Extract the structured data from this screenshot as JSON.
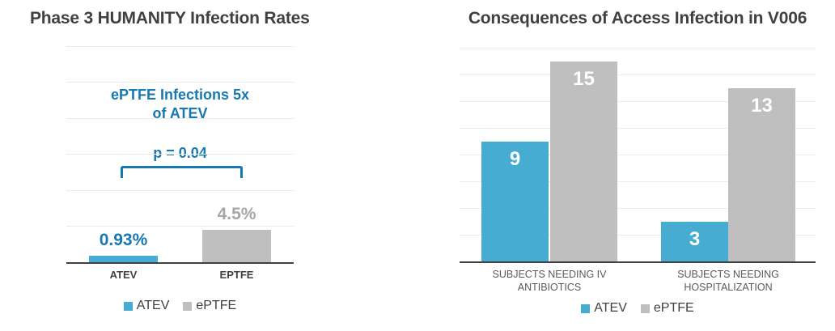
{
  "colors": {
    "atev": "#47ACD2",
    "eptfe": "#BFBFBF",
    "accent_blue": "#1778B2",
    "title_text": "#404040",
    "gray_label": "#A6A6A6",
    "axis": "#404040",
    "gridline": "#EBEBEB",
    "category_dark": "#404040",
    "category_gray": "#595959",
    "legend_text": "#3F3F3F",
    "bar_label_white": "#FFFFFF"
  },
  "chart_data": [
    {
      "type": "bar",
      "title": "Phase 3 HUMANITY Infection Rates",
      "categories": [
        "ATEV",
        "EPTFE"
      ],
      "values": [
        0.93,
        4.5
      ],
      "value_labels": [
        "0.93%",
        "4.5%"
      ],
      "value_label_colors": [
        "accent_blue",
        "gray_label"
      ],
      "bar_colors": [
        "atev",
        "eptfe"
      ],
      "ylim": [
        0,
        30
      ],
      "grid_step": 5,
      "grid": true,
      "legend_position": "bottom",
      "legend": [
        {
          "label": "ATEV",
          "color": "atev"
        },
        {
          "label": "ePTFE",
          "color": "eptfe"
        }
      ],
      "annotations": {
        "note_line1": "ePTFE Infections 5x",
        "note_line2": "of ATEV",
        "p_value": "p = 0.04"
      }
    },
    {
      "type": "bar",
      "title": "Consequences of Access Infection in V006",
      "categories": [
        "SUBJECTS NEEDING IV ANTIBIOTICS",
        "SUBJECTS NEEDING HOSPITALIZATION"
      ],
      "categories_lines": [
        [
          "SUBJECTS NEEDING IV",
          "ANTIBIOTICS"
        ],
        [
          "SUBJECTS NEEDING",
          "HOSPITALIZATION"
        ]
      ],
      "series": [
        {
          "name": "ATEV",
          "color": "atev",
          "values": [
            9,
            3
          ]
        },
        {
          "name": "ePTFE",
          "color": "eptfe",
          "values": [
            15,
            13
          ]
        }
      ],
      "ylim": [
        0,
        16
      ],
      "grid_step": 2,
      "grid": true,
      "legend_position": "bottom",
      "legend": [
        {
          "label": "ATEV",
          "color": "atev"
        },
        {
          "label": "ePTFE",
          "color": "eptfe"
        }
      ]
    }
  ]
}
